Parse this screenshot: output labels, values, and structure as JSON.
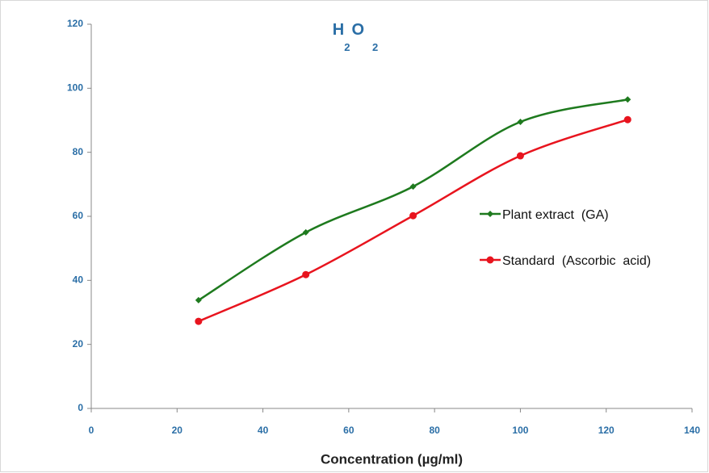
{
  "chart_data": {
    "type": "line",
    "title": [
      "H",
      "2",
      "O",
      "2"
    ],
    "x_label": "Concentration  (µg/ml)",
    "xlim": [
      0,
      140
    ],
    "xticks": [
      0,
      20,
      40,
      60,
      80,
      100,
      120,
      140
    ],
    "ylim": [
      0,
      120
    ],
    "yticks": [
      0,
      20,
      40,
      60,
      80,
      100,
      120
    ],
    "legend": "right",
    "series": [
      {
        "name": "Plant extract  (GA)",
        "color": "#1e7a1e",
        "marker": "diamond",
        "x": [
          25,
          50,
          75,
          100,
          125
        ],
        "values": [
          33.8,
          55,
          69.3,
          89.5,
          96.5
        ]
      },
      {
        "name": "Standard  (Ascorbic  acid)",
        "color": "#e8141e",
        "marker": "circle",
        "x": [
          25,
          50,
          75,
          100,
          125
        ],
        "values": [
          27.2,
          41.8,
          60.2,
          78.9,
          90.2
        ]
      }
    ]
  }
}
